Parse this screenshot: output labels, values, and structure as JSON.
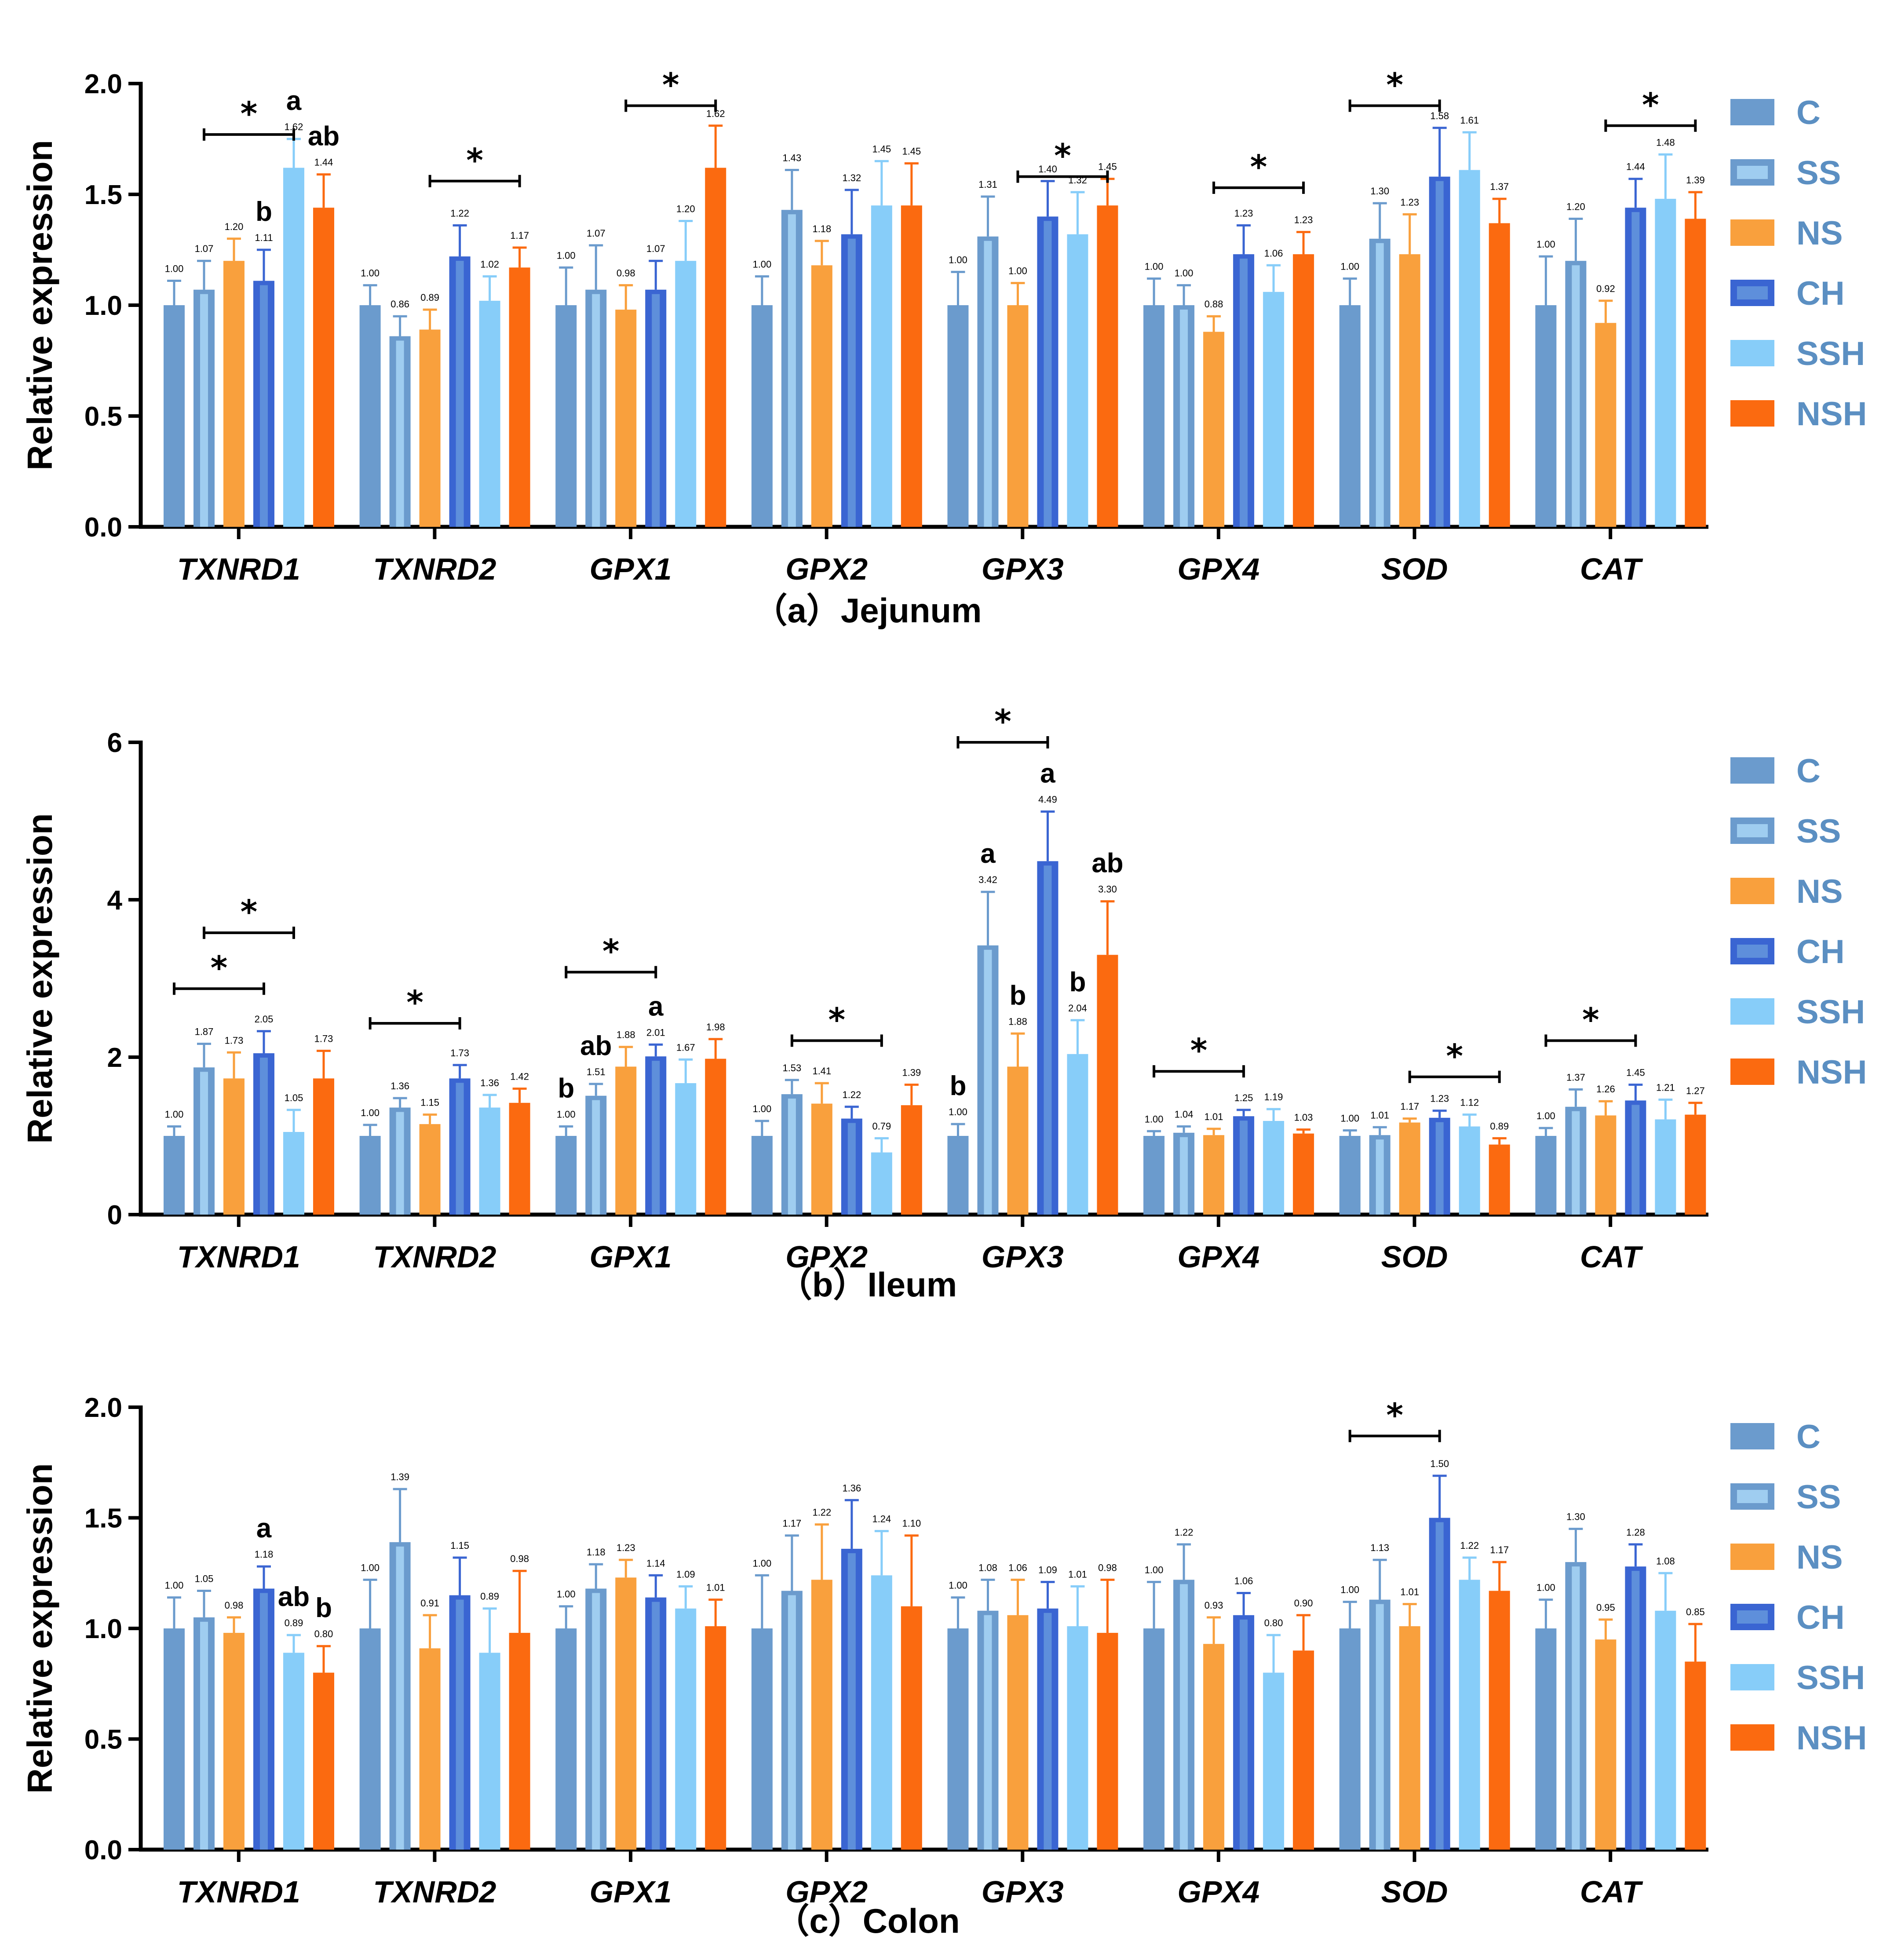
{
  "chart_data": [
    {
      "type": "bar",
      "title": "（a）Jejunum",
      "ylabel": "Relative expression",
      "ylim": [
        0,
        2.0
      ],
      "yticks": [
        "0.0",
        "0.5",
        "1.0",
        "1.5",
        "2.0"
      ],
      "categories": [
        "TXNRD1",
        "TXNRD2",
        "GPX1",
        "GPX2",
        "GPX3",
        "GPX4",
        "SOD",
        "CAT"
      ],
      "series": [
        {
          "name": "C",
          "color": "#6b9bcd",
          "values": [
            1.0,
            1.0,
            1.0,
            1.0,
            1.0,
            1.0,
            1.0,
            1.0
          ],
          "errors": [
            0.11,
            0.09,
            0.17,
            0.13,
            0.15,
            0.12,
            0.12,
            0.22
          ]
        },
        {
          "name": "SS",
          "color": "#6b9bcd",
          "values": [
            1.07,
            0.86,
            1.07,
            1.43,
            1.31,
            1.0,
            1.3,
            1.2
          ],
          "errors": [
            0.13,
            0.09,
            0.2,
            0.18,
            0.18,
            0.09,
            0.16,
            0.19
          ]
        },
        {
          "name": "NS",
          "color": "#f9a03d",
          "values": [
            1.2,
            0.89,
            0.98,
            1.18,
            1.0,
            0.88,
            1.23,
            0.92
          ],
          "errors": [
            0.1,
            0.09,
            0.11,
            0.11,
            0.1,
            0.07,
            0.18,
            0.1
          ]
        },
        {
          "name": "CH",
          "color": "#3a65d2",
          "values": [
            1.11,
            1.22,
            1.07,
            1.32,
            1.4,
            1.23,
            1.58,
            1.44
          ],
          "errors": [
            0.14,
            0.14,
            0.13,
            0.2,
            0.16,
            0.13,
            0.22,
            0.13
          ]
        },
        {
          "name": "SSH",
          "color": "#87cdf9",
          "values": [
            1.62,
            1.02,
            1.2,
            1.45,
            1.32,
            1.06,
            1.61,
            1.48
          ],
          "errors": [
            0.13,
            0.11,
            0.18,
            0.2,
            0.19,
            0.12,
            0.17,
            0.2
          ]
        },
        {
          "name": "NSH",
          "color": "#fb6a10",
          "values": [
            1.44,
            1.17,
            1.62,
            1.45,
            1.45,
            1.23,
            1.37,
            1.39
          ],
          "errors": [
            0.15,
            0.09,
            0.19,
            0.19,
            0.12,
            0.1,
            0.11,
            0.12
          ]
        }
      ],
      "value_labels": [
        [
          "1.00",
          "1.07",
          "1.20",
          "1.11",
          "1.62",
          "1.44"
        ],
        [
          "1.00",
          "0.86",
          "0.89",
          "1.22",
          "1.02",
          "1.17"
        ],
        [
          "1.00",
          "1.07",
          "0.98",
          "1.07",
          "1.20",
          "1.62"
        ],
        [
          "1.00",
          "1.43",
          "1.18",
          "1.32",
          "1.45",
          "1.45"
        ],
        [
          "1.00",
          "1.31",
          "1.00",
          "1.40",
          "1.32",
          "1.45"
        ],
        [
          "1.00",
          "1.00",
          "0.88",
          "1.23",
          "1.06",
          "1.23"
        ],
        [
          "1.00",
          "1.30",
          "1.23",
          "1.58",
          "1.61",
          "1.37"
        ],
        [
          "1.00",
          "1.20",
          "0.92",
          "1.44",
          "1.48",
          "1.39"
        ]
      ],
      "significance": [
        {
          "group": 0,
          "from": 1,
          "to": 4,
          "value": 1.77,
          "label": "*"
        },
        {
          "group": 1,
          "from": 2,
          "to": 5,
          "value": 1.56,
          "label": "*"
        },
        {
          "group": 2,
          "from": 2,
          "to": 5,
          "value": 1.9,
          "label": "*"
        },
        {
          "group": 4,
          "from": 2,
          "to": 5,
          "value": 1.58,
          "label": "*"
        },
        {
          "group": 5,
          "from": 2,
          "to": 5,
          "value": 1.53,
          "label": "*"
        },
        {
          "group": 6,
          "from": 0,
          "to": 3,
          "value": 1.9,
          "label": "*"
        },
        {
          "group": 7,
          "from": 2,
          "to": 5,
          "value": 1.81,
          "label": "*"
        }
      ],
      "letters": [
        {
          "group": 0,
          "bar": 3,
          "label": "b"
        },
        {
          "group": 0,
          "bar": 4,
          "label": "a"
        },
        {
          "group": 0,
          "bar": 5,
          "label": "ab"
        }
      ]
    },
    {
      "type": "bar",
      "title": "（b）Ileum",
      "ylabel": "Relative expression",
      "ylim": [
        0,
        6
      ],
      "yticks": [
        "0",
        "2",
        "4",
        "6"
      ],
      "categories": [
        "TXNRD1",
        "TXNRD2",
        "GPX1",
        "GPX2",
        "GPX3",
        "GPX4",
        "SOD",
        "CAT"
      ],
      "series": [
        {
          "name": "C",
          "color": "#6b9bcd",
          "values": [
            1.0,
            1.0,
            1.0,
            1.0,
            1.0,
            1.0,
            1.0,
            1.0
          ],
          "errors": [
            0.12,
            0.14,
            0.12,
            0.19,
            0.15,
            0.06,
            0.07,
            0.1
          ]
        },
        {
          "name": "SS",
          "color": "#6b9bcd",
          "values": [
            1.87,
            1.36,
            1.51,
            1.53,
            3.42,
            1.04,
            1.01,
            1.37
          ],
          "errors": [
            0.3,
            0.12,
            0.15,
            0.18,
            0.68,
            0.08,
            0.1,
            0.22
          ]
        },
        {
          "name": "NS",
          "color": "#f9a03d",
          "values": [
            1.73,
            1.15,
            1.88,
            1.41,
            1.88,
            1.01,
            1.17,
            1.26
          ],
          "errors": [
            0.33,
            0.12,
            0.25,
            0.26,
            0.42,
            0.08,
            0.05,
            0.18
          ]
        },
        {
          "name": "CH",
          "color": "#3a65d2",
          "values": [
            2.05,
            1.73,
            2.01,
            1.22,
            4.49,
            1.25,
            1.23,
            1.45
          ],
          "errors": [
            0.28,
            0.17,
            0.15,
            0.15,
            0.63,
            0.08,
            0.09,
            0.2
          ]
        },
        {
          "name": "SSH",
          "color": "#87cdf9",
          "values": [
            1.05,
            1.36,
            1.67,
            0.79,
            2.04,
            1.19,
            1.12,
            1.21
          ],
          "errors": [
            0.28,
            0.16,
            0.3,
            0.18,
            0.43,
            0.15,
            0.15,
            0.25
          ]
        },
        {
          "name": "NSH",
          "color": "#fb6a10",
          "values": [
            1.73,
            1.42,
            1.98,
            1.39,
            3.3,
            1.03,
            0.89,
            1.27
          ],
          "errors": [
            0.35,
            0.18,
            0.25,
            0.26,
            0.68,
            0.05,
            0.08,
            0.15
          ]
        }
      ],
      "value_labels": [
        [
          "1.00",
          "1.87",
          "1.73",
          "2.05",
          "1.05",
          "1.73"
        ],
        [
          "1.00",
          "1.36",
          "1.15",
          "1.73",
          "1.36",
          "1.42"
        ],
        [
          "1.00",
          "1.51",
          "1.88",
          "2.01",
          "1.67",
          "1.98"
        ],
        [
          "1.00",
          "1.53",
          "1.41",
          "1.22",
          "0.79",
          "1.39"
        ],
        [
          "1.00",
          "3.42",
          "1.88",
          "4.49",
          "2.04",
          "3.30"
        ],
        [
          "1.00",
          "1.04",
          "1.01",
          "1.25",
          "1.19",
          "1.03"
        ],
        [
          "1.00",
          "1.01",
          "1.17",
          "1.23",
          "1.12",
          "0.89"
        ],
        [
          "1.00",
          "1.37",
          "1.26",
          "1.45",
          "1.21",
          "1.27"
        ]
      ],
      "significance": [
        {
          "group": 0,
          "from": 0,
          "to": 3,
          "value": 2.87,
          "label": "*"
        },
        {
          "group": 0,
          "from": 1,
          "to": 4,
          "value": 3.58,
          "label": "*"
        },
        {
          "group": 1,
          "from": 0,
          "to": 3,
          "value": 2.43,
          "label": "*"
        },
        {
          "group": 2,
          "from": 0,
          "to": 3,
          "value": 3.08,
          "label": "*"
        },
        {
          "group": 3,
          "from": 1,
          "to": 4,
          "value": 2.21,
          "label": "*"
        },
        {
          "group": 4,
          "from": 0,
          "to": 3,
          "value": 6.0,
          "label": "*"
        },
        {
          "group": 5,
          "from": 0,
          "to": 3,
          "value": 1.82,
          "label": "*"
        },
        {
          "group": 6,
          "from": 2,
          "to": 5,
          "value": 1.75,
          "label": "*"
        },
        {
          "group": 7,
          "from": 0,
          "to": 3,
          "value": 2.21,
          "label": "*"
        }
      ],
      "letters": [
        {
          "group": 2,
          "bar": 0,
          "label": "b"
        },
        {
          "group": 2,
          "bar": 1,
          "label": "ab"
        },
        {
          "group": 2,
          "bar": 3,
          "label": "a"
        },
        {
          "group": 4,
          "bar": 0,
          "label": "b"
        },
        {
          "group": 4,
          "bar": 1,
          "label": "a"
        },
        {
          "group": 4,
          "bar": 2,
          "label": "b"
        },
        {
          "group": 4,
          "bar": 3,
          "label": "a"
        },
        {
          "group": 4,
          "bar": 4,
          "label": "b"
        },
        {
          "group": 4,
          "bar": 5,
          "label": "ab"
        }
      ]
    },
    {
      "type": "bar",
      "title": "（c）Colon",
      "ylabel": "Relative expression",
      "ylim": [
        0,
        2.0
      ],
      "yticks": [
        "0.0",
        "0.5",
        "1.0",
        "1.5",
        "2.0"
      ],
      "categories": [
        "TXNRD1",
        "TXNRD2",
        "GPX1",
        "GPX2",
        "GPX3",
        "GPX4",
        "SOD",
        "CAT"
      ],
      "series": [
        {
          "name": "C",
          "color": "#6b9bcd",
          "values": [
            1.0,
            1.0,
            1.0,
            1.0,
            1.0,
            1.0,
            1.0,
            1.0
          ],
          "errors": [
            0.14,
            0.22,
            0.1,
            0.24,
            0.14,
            0.21,
            0.12,
            0.13
          ]
        },
        {
          "name": "SS",
          "color": "#6b9bcd",
          "values": [
            1.05,
            1.39,
            1.18,
            1.17,
            1.08,
            1.22,
            1.13,
            1.3
          ],
          "errors": [
            0.12,
            0.24,
            0.11,
            0.25,
            0.14,
            0.16,
            0.18,
            0.15
          ]
        },
        {
          "name": "NS",
          "color": "#f9a03d",
          "values": [
            0.98,
            0.91,
            1.23,
            1.22,
            1.06,
            0.93,
            1.01,
            0.95
          ],
          "errors": [
            0.07,
            0.15,
            0.08,
            0.25,
            0.16,
            0.12,
            0.1,
            0.09
          ]
        },
        {
          "name": "CH",
          "color": "#3a65d2",
          "values": [
            1.18,
            1.15,
            1.14,
            1.36,
            1.09,
            1.06,
            1.5,
            1.28
          ],
          "errors": [
            0.1,
            0.17,
            0.1,
            0.22,
            0.12,
            0.1,
            0.19,
            0.1
          ]
        },
        {
          "name": "SSH",
          "color": "#87cdf9",
          "values": [
            0.89,
            0.89,
            1.09,
            1.24,
            1.01,
            0.8,
            1.22,
            1.08
          ],
          "errors": [
            0.08,
            0.2,
            0.1,
            0.2,
            0.18,
            0.17,
            0.1,
            0.17
          ]
        },
        {
          "name": "NSH",
          "color": "#fb6a10",
          "values": [
            0.8,
            0.98,
            1.01,
            1.1,
            0.98,
            0.9,
            1.17,
            0.85
          ],
          "errors": [
            0.12,
            0.28,
            0.12,
            0.32,
            0.24,
            0.16,
            0.13,
            0.17
          ]
        }
      ],
      "value_labels": [
        [
          "1.00",
          "1.05",
          "0.98",
          "1.18",
          "0.89",
          "0.80"
        ],
        [
          "1.00",
          "1.39",
          "0.91",
          "1.15",
          "0.89",
          "0.98"
        ],
        [
          "1.00",
          "1.18",
          "1.23",
          "1.14",
          "1.09",
          "1.01"
        ],
        [
          "1.00",
          "1.17",
          "1.22",
          "1.36",
          "1.24",
          "1.10"
        ],
        [
          "1.00",
          "1.08",
          "1.06",
          "1.09",
          "1.01",
          "0.98"
        ],
        [
          "1.00",
          "1.22",
          "0.93",
          "1.06",
          "0.80",
          "0.90"
        ],
        [
          "1.00",
          "1.13",
          "1.01",
          "1.50",
          "1.22",
          "1.17"
        ],
        [
          "1.00",
          "1.30",
          "0.95",
          "1.28",
          "1.08",
          "0.85"
        ]
      ],
      "significance": [
        {
          "group": 6,
          "from": 0,
          "to": 3,
          "value": 1.87,
          "label": "*"
        }
      ],
      "letters": [
        {
          "group": 0,
          "bar": 3,
          "label": "a"
        },
        {
          "group": 0,
          "bar": 4,
          "label": "ab"
        },
        {
          "group": 0,
          "bar": 5,
          "label": "b"
        }
      ]
    }
  ],
  "legend": [
    "C",
    "SS",
    "NS",
    "CH",
    "SSH",
    "NSH"
  ]
}
